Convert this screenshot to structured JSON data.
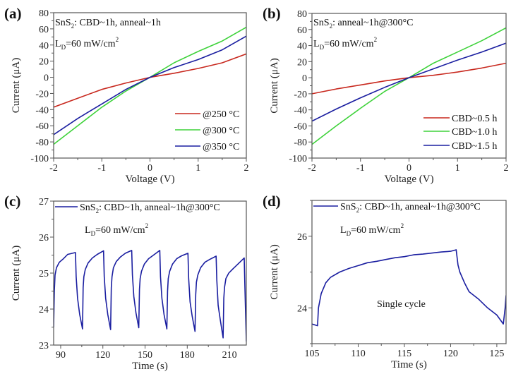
{
  "colors": {
    "red": "#c8281e",
    "green": "#3ed23a",
    "blue": "#1a1ea0",
    "axis": "#555555"
  },
  "chart_data": [
    {
      "panel_label": "(a)",
      "type": "line",
      "xlabel": "Voltage (V)",
      "ylabel": "Current (μA)",
      "xlim": [
        -2,
        2
      ],
      "ylim": [
        -100,
        80
      ],
      "xticks": [
        -2,
        -1,
        0,
        1,
        2
      ],
      "xminor": 0.5,
      "yticks": [
        -100,
        -80,
        -60,
        -40,
        -20,
        0,
        20,
        40,
        60,
        80
      ],
      "yminor": 10,
      "annotations": [
        {
          "pre": "SnS",
          "sub": "2",
          "post": ": CBD~1h, anneal~1h"
        },
        {
          "pre": "L",
          "sub": "D",
          "post": "=60 mW/cm",
          "sup": "2"
        }
      ],
      "legend_placement": "bottom-right",
      "series": [
        {
          "name": "@250 °C",
          "color": "red",
          "x": [
            -2,
            -1.5,
            -1,
            -0.5,
            0,
            0.5,
            1,
            1.5,
            2
          ],
          "y": [
            -37,
            -26,
            -15,
            -7,
            0,
            5,
            11,
            18,
            29
          ]
        },
        {
          "name": "@300 °C",
          "color": "green",
          "x": [
            -2,
            -1.5,
            -1,
            -0.5,
            0,
            0.5,
            1,
            1.5,
            2
          ],
          "y": [
            -83,
            -60,
            -37,
            -17,
            0,
            18,
            32,
            45,
            62
          ]
        },
        {
          "name": "@350 °C",
          "color": "blue",
          "x": [
            -2,
            -1.5,
            -1,
            -0.5,
            0,
            0.5,
            1,
            1.5,
            2
          ],
          "y": [
            -71,
            -51,
            -33,
            -15,
            0,
            12,
            22,
            34,
            51
          ]
        }
      ]
    },
    {
      "panel_label": "(b)",
      "type": "line",
      "xlabel": "Voltage (V)",
      "ylabel": "Current (μA)",
      "xlim": [
        -2,
        2
      ],
      "ylim": [
        -100,
        80
      ],
      "xticks": [
        -2,
        -1,
        0,
        1,
        2
      ],
      "xminor": 0.5,
      "yticks": [
        -100,
        -80,
        -60,
        -40,
        -20,
        0,
        20,
        40,
        60,
        80
      ],
      "yminor": 10,
      "annotations": [
        {
          "pre": "SnS",
          "sub": "2",
          "post": ": anneal~1h@300°C"
        },
        {
          "pre": "L",
          "sub": "D",
          "post": "=60 mW/cm",
          "sup": "2"
        }
      ],
      "legend_placement": "bottom-right",
      "series": [
        {
          "name": "CBD~0.5 h",
          "color": "red",
          "x": [
            -2,
            -1.5,
            -1,
            -0.5,
            0,
            0.5,
            1,
            1.5,
            2
          ],
          "y": [
            -20,
            -14,
            -9,
            -4,
            0,
            3,
            7,
            12,
            18
          ]
        },
        {
          "name": "CBD~1.0 h",
          "color": "green",
          "x": [
            -2,
            -1.5,
            -1,
            -0.5,
            0,
            0.5,
            1,
            1.5,
            2
          ],
          "y": [
            -83,
            -60,
            -38,
            -17,
            0,
            18,
            32,
            46,
            62
          ]
        },
        {
          "name": "CBD~1.5 h",
          "color": "blue",
          "x": [
            -2,
            -1.5,
            -1,
            -0.5,
            0,
            0.5,
            1,
            1.5,
            2
          ],
          "y": [
            -54,
            -39,
            -25,
            -12,
            0,
            11,
            22,
            32,
            43
          ]
        }
      ]
    },
    {
      "panel_label": "(c)",
      "type": "line",
      "xlabel": "Time (s)",
      "ylabel": "Current (μA)",
      "xlim": [
        85,
        222
      ],
      "ylim": [
        23,
        27
      ],
      "xticks": [
        90,
        120,
        150,
        180,
        210
      ],
      "xminor": 15,
      "yticks": [
        23,
        24,
        25,
        26,
        27
      ],
      "yminor": 0.5,
      "annotations": [
        {
          "pre": "L",
          "sub": "D",
          "post": "=60 mW/cm",
          "sup": "2"
        }
      ],
      "legend_placement": "top-left",
      "series": [
        {
          "name": "SnS2: CBD~1h, anneal~1h@300°C",
          "legend": {
            "pre": "SnS",
            "sub": "2",
            "post": ": CBD~1h, anneal~1h@300°C"
          },
          "color": "blue",
          "x": [
            85,
            85.5,
            86,
            87,
            89,
            92,
            95,
            100.5,
            101,
            102,
            103.5,
            105.5,
            106,
            106.5,
            107.5,
            109.5,
            112.5,
            116,
            120.5,
            121,
            122,
            123.5,
            125.5,
            126,
            126.5,
            127.5,
            129.5,
            132.5,
            136,
            140.5,
            141,
            142,
            143.5,
            145.5,
            146,
            146.5,
            147.5,
            149.5,
            152.5,
            156,
            160.5,
            161,
            162,
            163.5,
            165.5,
            166,
            166.5,
            167.5,
            169.5,
            172.5,
            176,
            180.5,
            181,
            182,
            183.5,
            185.5,
            186,
            186.5,
            187.5,
            189.5,
            192.5,
            196,
            200.5,
            201,
            202,
            203.5,
            205.5,
            206,
            206.5,
            207.5,
            209.5,
            212.5,
            216,
            220.5,
            221,
            222
          ],
          "y": [
            23.5,
            24.5,
            24.95,
            25.15,
            25.3,
            25.4,
            25.52,
            25.57,
            24.9,
            24.3,
            23.85,
            23.45,
            24.6,
            24.9,
            25.1,
            25.28,
            25.42,
            25.52,
            25.62,
            24.9,
            24.3,
            23.85,
            23.43,
            24.6,
            24.9,
            25.15,
            25.32,
            25.45,
            25.55,
            25.63,
            24.95,
            24.35,
            23.9,
            23.48,
            24.55,
            24.85,
            25.05,
            25.25,
            25.4,
            25.5,
            25.63,
            24.9,
            24.3,
            23.85,
            23.45,
            24.5,
            24.85,
            25.05,
            25.25,
            25.4,
            25.48,
            25.55,
            24.85,
            24.2,
            23.8,
            23.38,
            24.4,
            24.75,
            24.95,
            25.15,
            25.3,
            25.38,
            25.47,
            24.8,
            24.1,
            23.7,
            23.2,
            24.3,
            24.6,
            24.85,
            25.0,
            25.12,
            25.25,
            25.42,
            24.6,
            23.1
          ]
        }
      ]
    },
    {
      "panel_label": "(d)",
      "type": "line",
      "xlabel": "Time (s)",
      "ylabel": "Current (μA)",
      "xlim": [
        105,
        126
      ],
      "ylim": [
        23,
        27
      ],
      "xticks": [
        105,
        110,
        115,
        120,
        125
      ],
      "xminor": 2.5,
      "yticks": [
        24,
        26
      ],
      "yminor": 1,
      "annotations": [
        {
          "pre": "L",
          "sub": "D",
          "post": "=60 mW/cm",
          "sup": "2"
        },
        {
          "pre": "Single cycle"
        }
      ],
      "legend_placement": "top-left",
      "series": [
        {
          "name": "SnS2: CBD~1h, anneal~1h@300°C",
          "legend": {
            "pre": "SnS",
            "sub": "2",
            "post": ": CBD~1h, anneal~1h@300°C"
          },
          "color": "blue",
          "x": [
            105,
            105.6,
            105.7,
            106,
            106.5,
            107,
            108,
            109,
            110,
            111,
            112,
            113,
            114,
            115,
            116,
            117,
            118,
            119,
            120,
            120.6,
            120.8,
            121,
            121.5,
            122,
            123,
            124,
            125,
            125.7,
            125.9,
            126
          ],
          "y": [
            23.55,
            23.5,
            24.0,
            24.4,
            24.7,
            24.85,
            25.0,
            25.1,
            25.18,
            25.26,
            25.3,
            25.35,
            25.4,
            25.43,
            25.48,
            25.5,
            25.53,
            25.56,
            25.58,
            25.62,
            25.2,
            25.0,
            24.7,
            24.45,
            24.25,
            24.0,
            23.8,
            23.55,
            24.0,
            24.35
          ]
        }
      ]
    }
  ]
}
